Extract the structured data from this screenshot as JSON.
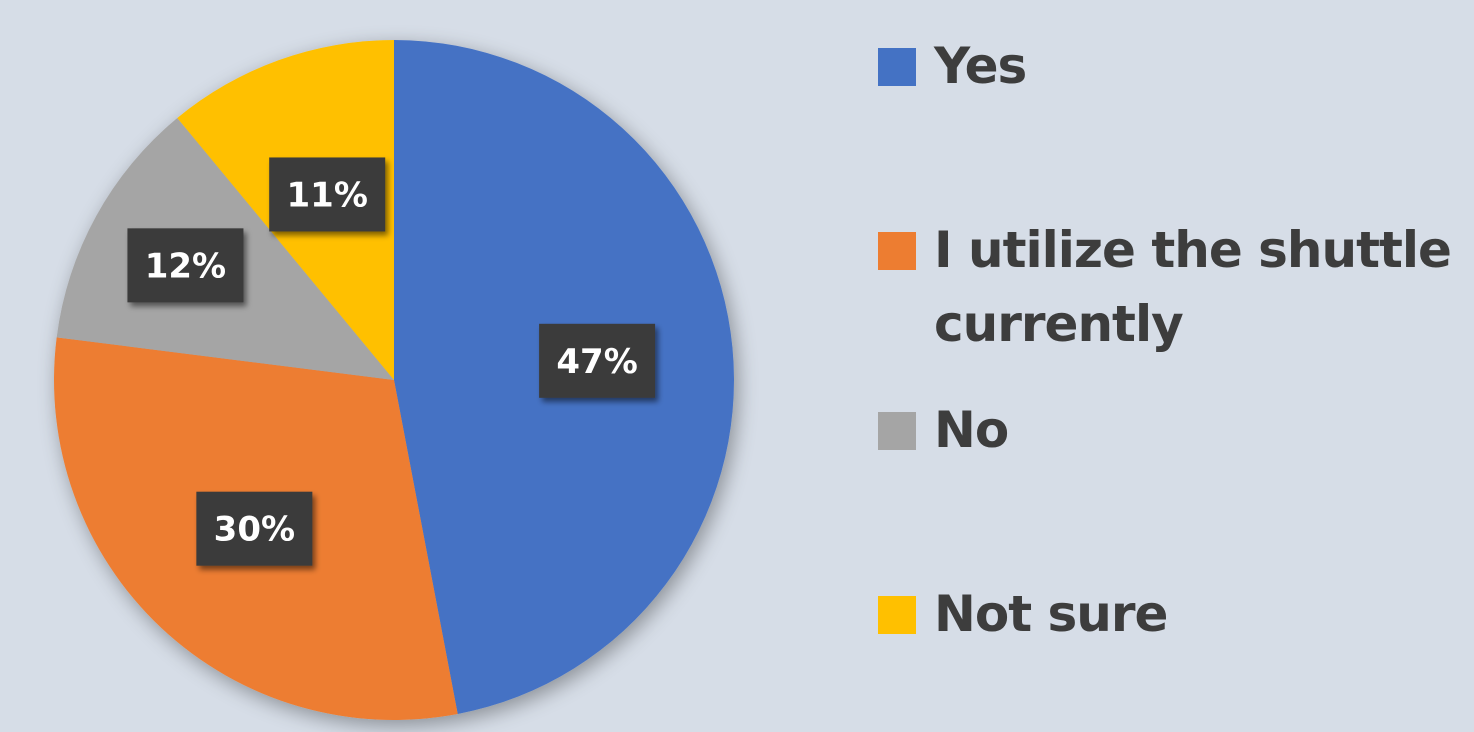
{
  "chart_data": {
    "type": "pie",
    "title": "",
    "slices": [
      {
        "label": "Yes",
        "value": 47,
        "display": "47%",
        "color": "#4472c4"
      },
      {
        "label": "I utilize the shuttle currently",
        "label_lines": [
          "I utilize the shuttle",
          "currently"
        ],
        "value": 30,
        "display": "30%",
        "color": "#ed7d31"
      },
      {
        "label": "No",
        "value": 12,
        "display": "12%",
        "color": "#a5a5a5"
      },
      {
        "label": "Not sure",
        "value": 11,
        "display": "11%",
        "color": "#ffc000"
      }
    ],
    "legend_position": "right",
    "start_angle": "top, clockwise"
  },
  "legend": {
    "items": [
      {
        "lines": [
          "Yes"
        ],
        "color": "#4472c4"
      },
      {
        "lines": [
          "I utilize the shuttle",
          "currently"
        ],
        "color": "#ed7d31"
      },
      {
        "lines": [
          "No"
        ],
        "color": "#a5a5a5"
      },
      {
        "lines": [
          "Not sure"
        ],
        "color": "#ffc000"
      }
    ]
  }
}
